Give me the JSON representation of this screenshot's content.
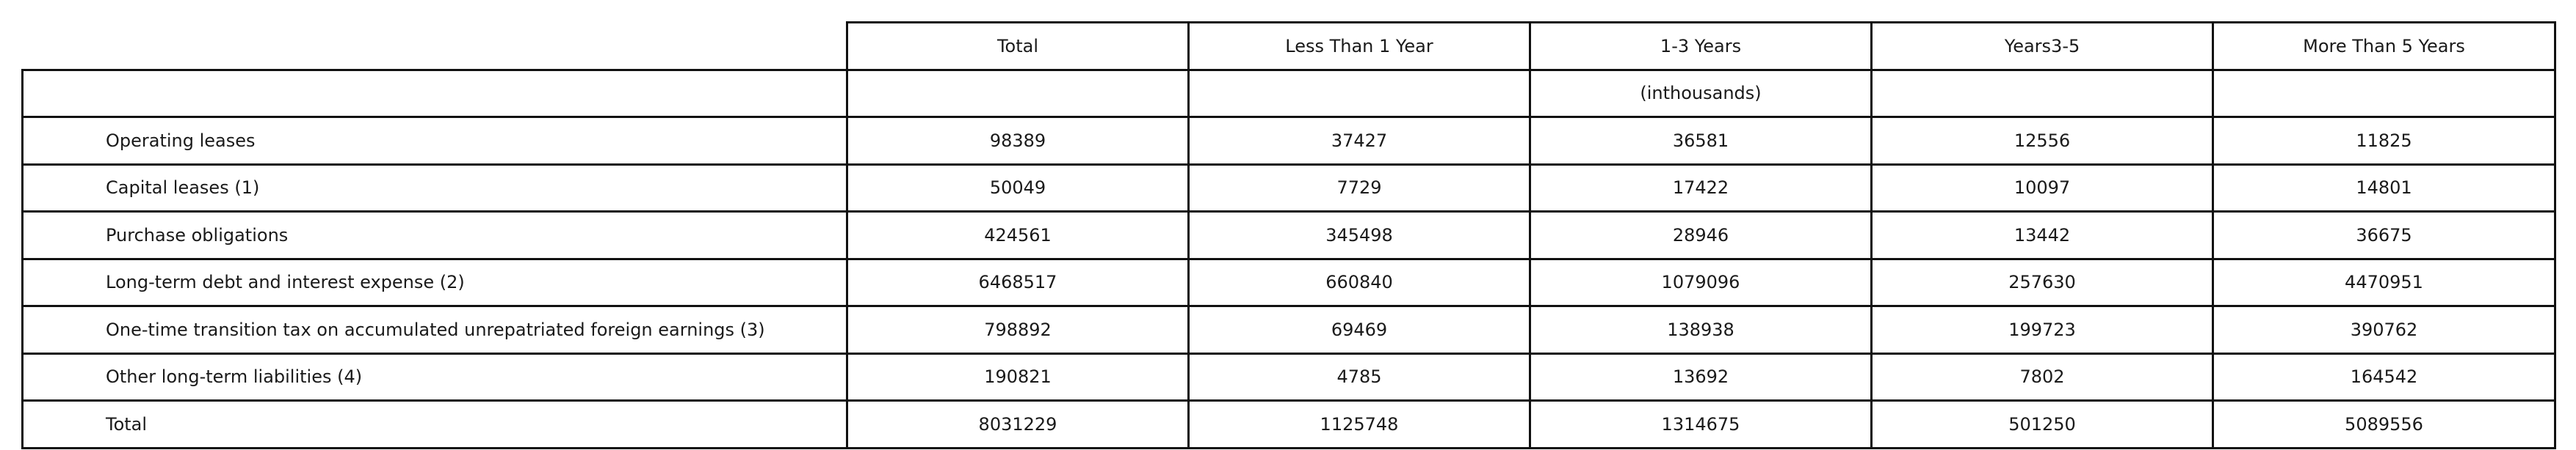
{
  "header": {
    "columns": [
      "Total",
      "Less Than 1 Year",
      "1-3 Years",
      "Years3-5",
      "More Than 5 Years"
    ]
  },
  "subheader": {
    "cells": [
      "",
      "",
      "(inthousands)",
      "",
      ""
    ]
  },
  "rows": [
    {
      "label": "Operating leases",
      "values": [
        "98389",
        "37427",
        "36581",
        "12556",
        "11825"
      ]
    },
    {
      "label": "Capital leases (1)",
      "values": [
        "50049",
        "7729",
        "17422",
        "10097",
        "14801"
      ]
    },
    {
      "label": "Purchase obligations",
      "values": [
        "424561",
        "345498",
        "28946",
        "13442",
        "36675"
      ]
    },
    {
      "label": "Long-term debt and interest expense (2)",
      "values": [
        "6468517",
        "660840",
        "1079096",
        "257630",
        "4470951"
      ]
    },
    {
      "label": "One-time transition tax on accumulated unrepatriated foreign earnings (3)",
      "values": [
        "798892",
        "69469",
        "138938",
        "199723",
        "390762"
      ]
    },
    {
      "label": "Other long-term liabilities (4)",
      "values": [
        "190821",
        "4785",
        "13692",
        "7802",
        "164542"
      ]
    },
    {
      "label": "Total",
      "values": [
        "8031229",
        "1125748",
        "1314675",
        "501250",
        "5089556"
      ]
    }
  ]
}
